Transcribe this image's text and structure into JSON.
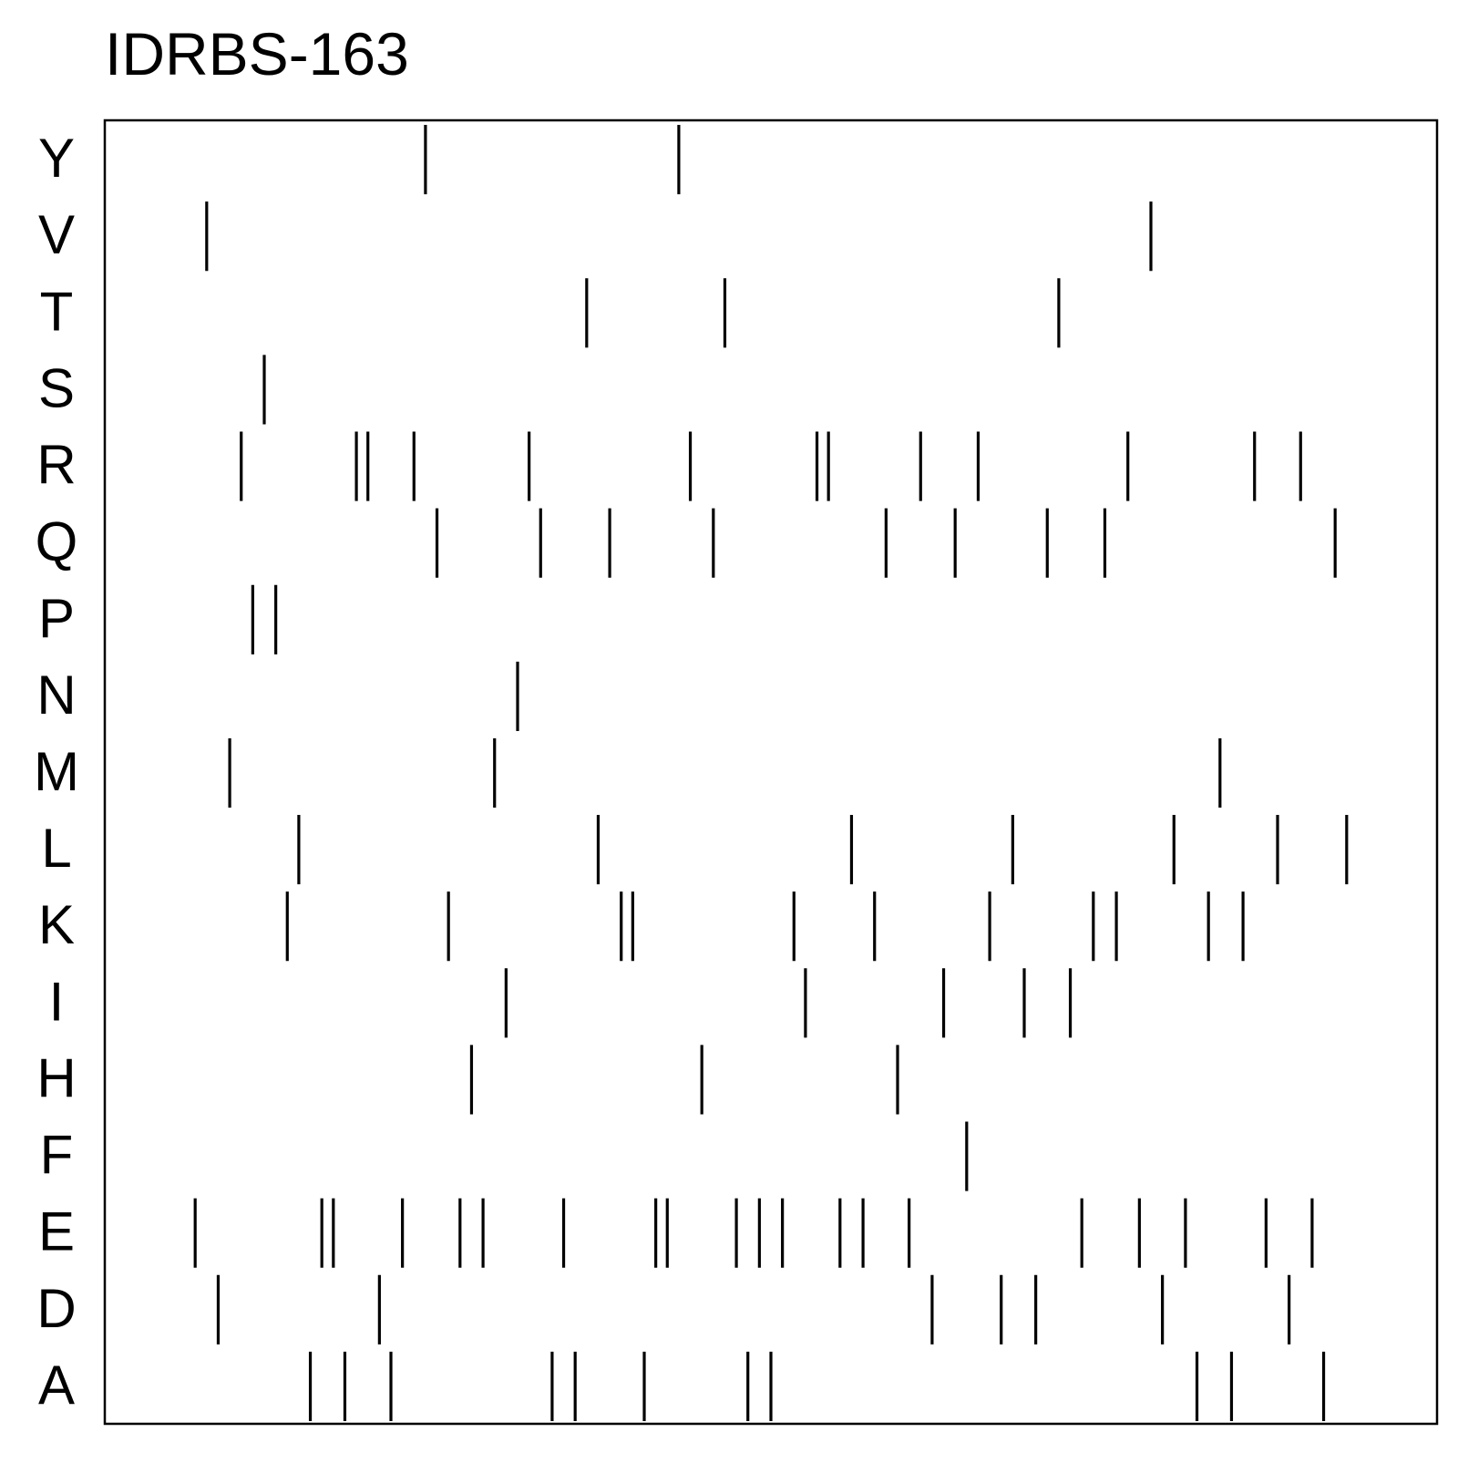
{
  "chart_data": {
    "type": "scatter",
    "title": "IDRBS-163",
    "xlabel": "",
    "ylabel": "",
    "axes": {
      "x_ticks": false,
      "y_ticks": "categories",
      "grid": false,
      "legend": "none"
    },
    "marker": "vertical-line",
    "x_range": [
      0,
      110
    ],
    "categories": [
      "Y",
      "V",
      "T",
      "S",
      "R",
      "Q",
      "P",
      "N",
      "M",
      "L",
      "K",
      "I",
      "H",
      "F",
      "E",
      "D",
      "A"
    ],
    "rows": [
      {
        "label": "Y",
        "positions": [
          25,
          47
        ]
      },
      {
        "label": "V",
        "positions": [
          6,
          88
        ]
      },
      {
        "label": "T",
        "positions": [
          39,
          51,
          80
        ]
      },
      {
        "label": "S",
        "positions": [
          11
        ]
      },
      {
        "label": "R",
        "positions": [
          9,
          19,
          20,
          24,
          34,
          48,
          59,
          60,
          68,
          73,
          86,
          97,
          101
        ]
      },
      {
        "label": "Q",
        "positions": [
          26,
          35,
          41,
          50,
          65,
          71,
          79,
          84,
          104
        ]
      },
      {
        "label": "P",
        "positions": [
          10,
          12
        ]
      },
      {
        "label": "N",
        "positions": [
          33
        ]
      },
      {
        "label": "M",
        "positions": [
          8,
          31,
          94
        ]
      },
      {
        "label": "L",
        "positions": [
          14,
          40,
          62,
          76,
          90,
          99,
          105
        ]
      },
      {
        "label": "K",
        "positions": [
          13,
          27,
          42,
          43,
          57,
          64,
          74,
          83,
          85,
          93,
          96
        ]
      },
      {
        "label": "I",
        "positions": [
          32,
          58,
          70,
          77,
          81
        ]
      },
      {
        "label": "H",
        "positions": [
          29,
          49,
          66
        ]
      },
      {
        "label": "F",
        "positions": [
          72
        ]
      },
      {
        "label": "E",
        "positions": [
          5,
          16,
          17,
          23,
          28,
          30,
          37,
          45,
          46,
          52,
          54,
          56,
          61,
          63,
          67,
          82,
          87,
          91,
          98,
          102
        ]
      },
      {
        "label": "D",
        "positions": [
          7,
          21,
          69,
          75,
          78,
          89,
          100
        ]
      },
      {
        "label": "A",
        "positions": [
          15,
          18,
          22,
          36,
          38,
          44,
          53,
          55,
          92,
          95,
          103
        ]
      }
    ]
  }
}
